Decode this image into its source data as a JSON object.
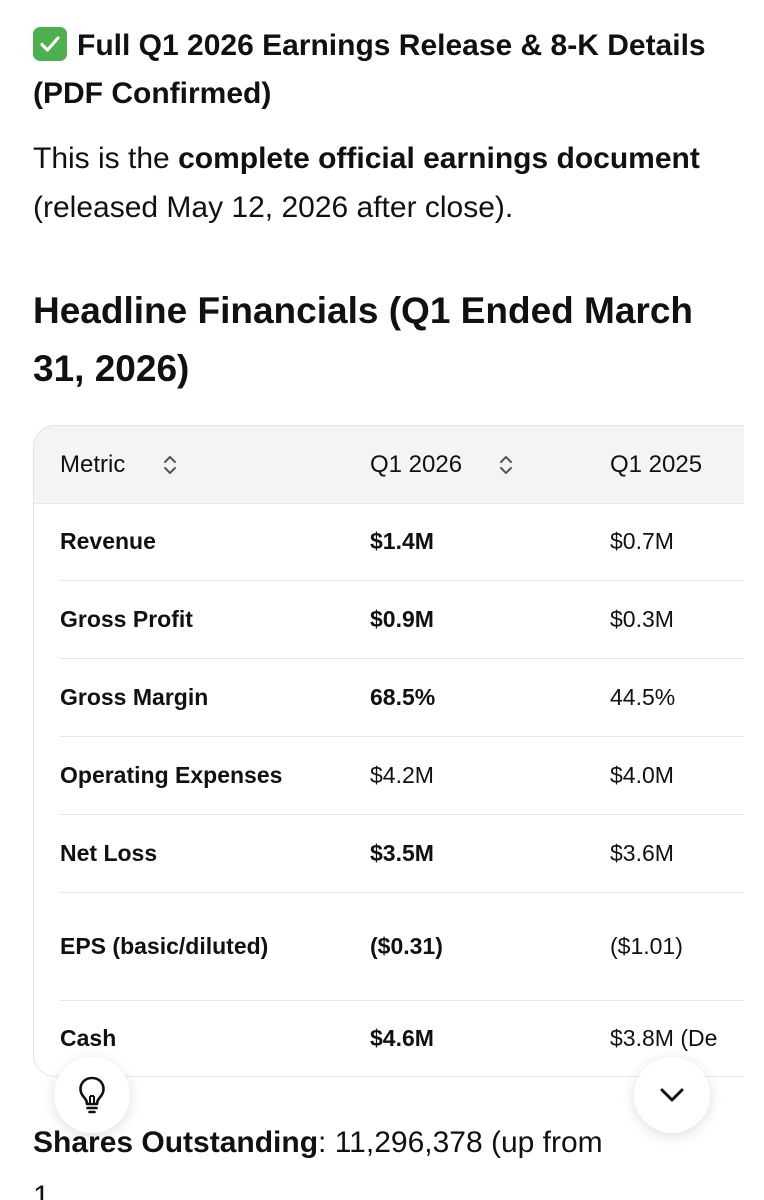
{
  "title": {
    "icon": "check-mark-button-icon",
    "text": "Full Q1 2026 Earnings Release & 8-K Details (PDF Confirmed)"
  },
  "intro": {
    "prefix": "This is the ",
    "bold": "complete official earnings document",
    "suffix": " (released May 12, 2026 after close)."
  },
  "section_heading": "Headline Financials (Q1 Ended March 31, 2026)",
  "table": {
    "headers": {
      "metric": "Metric",
      "q1_2026": "Q1 2026",
      "q1_2025": "Q1 2025"
    },
    "rows": [
      {
        "metric": "Revenue",
        "q1_2026": "$1.4M",
        "q1_2026_bold": true,
        "q1_2025": "$0.7M"
      },
      {
        "metric": "Gross Profit",
        "q1_2026": "$0.9M",
        "q1_2026_bold": true,
        "q1_2025": "$0.3M"
      },
      {
        "metric": "Gross Margin",
        "q1_2026": "68.5%",
        "q1_2026_bold": true,
        "q1_2025": "44.5%"
      },
      {
        "metric": "Operating Expenses",
        "q1_2026": "$4.2M",
        "q1_2026_bold": false,
        "q1_2025": "$4.0M"
      },
      {
        "metric": "Net Loss",
        "q1_2026": "$3.5M",
        "q1_2026_bold": true,
        "q1_2025": "$3.6M"
      },
      {
        "metric": "EPS (basic/diluted)",
        "q1_2026": "($0.31)",
        "q1_2026_bold": true,
        "q1_2025": "($1.01)"
      },
      {
        "metric": "Cash",
        "q1_2026": "$4.6M",
        "q1_2026_bold": true,
        "q1_2025": "$3.8M (De"
      }
    ]
  },
  "shares": {
    "label": "Shares Outstanding",
    "value": ": 11,296,378 (up from",
    "cut_text": "1"
  },
  "buttons": {
    "lightbulb": "lightbulb-icon",
    "scroll_down": "chevron-down-icon"
  },
  "colors": {
    "check_green": "#4caf50",
    "header_bg": "#f4f4f4",
    "border": "#e6e6e6"
  }
}
